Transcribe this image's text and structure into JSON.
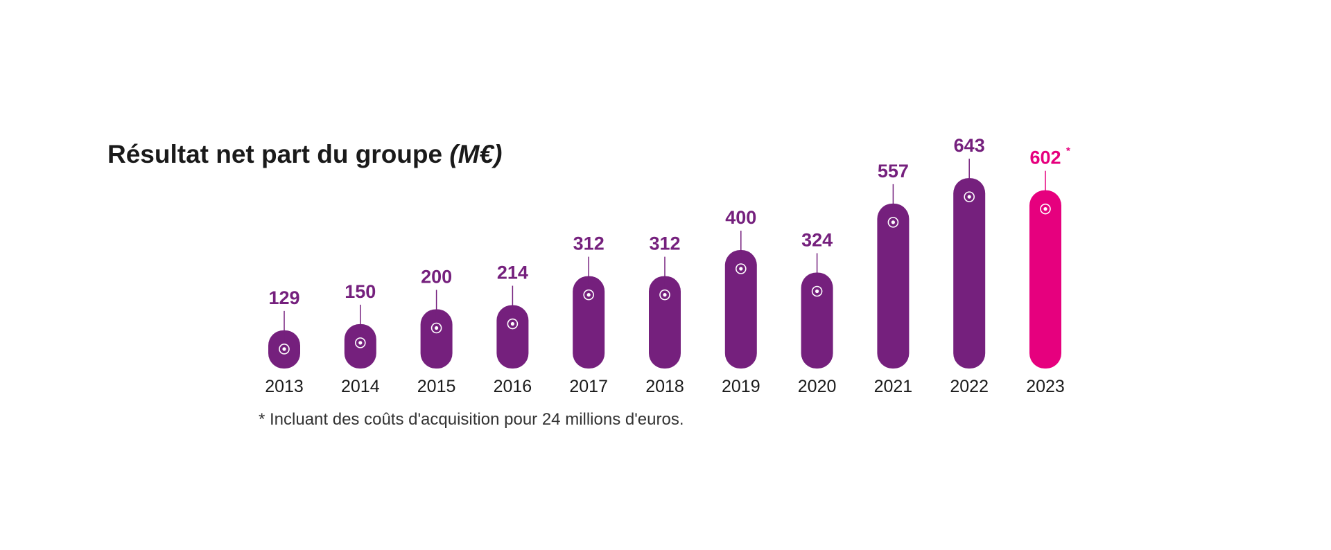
{
  "title": {
    "main": "Résultat net part du groupe ",
    "unit": "(M€)"
  },
  "footnote": "* Incluant des coûts d'acquisition pour 24 millions d'euros.",
  "colors": {
    "bar": "#75207d",
    "bar_highlight": "#e6007e",
    "label": "#75207d",
    "label_highlight": "#e6007e",
    "year_text": "#1a1a1a"
  },
  "chart_data": {
    "type": "bar",
    "title": "Résultat net part du groupe (M€)",
    "categories": [
      "2013",
      "2014",
      "2015",
      "2016",
      "2017",
      "2018",
      "2019",
      "2020",
      "2021",
      "2022",
      "2023"
    ],
    "values": [
      129,
      150,
      200,
      214,
      312,
      312,
      400,
      324,
      557,
      643,
      602
    ],
    "value_labels": [
      "129",
      "150",
      "200",
      "214",
      "312",
      "312",
      "400",
      "324",
      "557",
      "643",
      "602"
    ],
    "annotations": [
      {
        "category": "2023",
        "marker": "*"
      }
    ],
    "highlight_category": "2023",
    "xlabel": "",
    "ylabel": "",
    "grid": false,
    "legend": "none"
  }
}
